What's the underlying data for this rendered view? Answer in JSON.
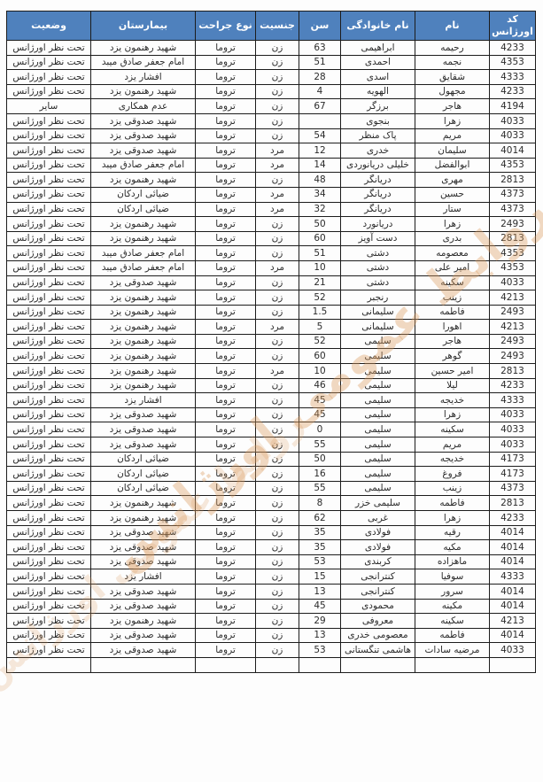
{
  "colors": {
    "header_bg": "#4f81bd",
    "header_text": "#ffffff",
    "grid_border": "#1c1c1c",
    "watermark": "#db9a5e"
  },
  "watermark": {
    "text": "روابط عمومی اورژانس"
  },
  "table": {
    "headers": [
      "کد اورژانس",
      "نام",
      "نام خانوادگی",
      "سن",
      "جنسیت",
      "نوع جراحت",
      "بیمارستان",
      "وضعیت"
    ],
    "rows": [
      [
        "4233",
        "رحیمه",
        "ابراهیمی",
        "63",
        "زن",
        "تروما",
        "شهید رهنمون یزد",
        "تحت نظر اورژانس"
      ],
      [
        "4353",
        "نجمه",
        "احمدی",
        "51",
        "زن",
        "تروما",
        "امام جعفر صادق میبد",
        "تحت نظر اورژانس"
      ],
      [
        "4333",
        "شقایق",
        "اسدی",
        "28",
        "زن",
        "تروما",
        "افشار یزد",
        "تحت نظر اورژانس"
      ],
      [
        "4233",
        "مجهول",
        "الهویه",
        "4",
        "زن",
        "تروما",
        "شهید رهنمون یزد",
        "تحت نظر اورژانس"
      ],
      [
        "4194",
        "هاجر",
        "برزگر",
        "67",
        "زن",
        "تروما",
        "عدم همکاری",
        "سایر"
      ],
      [
        "4033",
        "زهرا",
        "بنجوی",
        "",
        "زن",
        "تروما",
        "شهید صدوقی یزد",
        "تحت نظر اورژانس"
      ],
      [
        "4033",
        "مریم",
        "پاک منظر",
        "54",
        "زن",
        "تروما",
        "شهید صدوقی یزد",
        "تحت نظر اورژانس"
      ],
      [
        "4014",
        "سلیمان",
        "خدری",
        "12",
        "مرد",
        "تروما",
        "شهید صدوقی یزد",
        "تحت نظر اورژانس"
      ],
      [
        "4353",
        "ابوالفضل",
        "خلیلی دریانوردی",
        "14",
        "مرد",
        "تروما",
        "امام جعفر صادق میبد",
        "تحت نظر اورژانس"
      ],
      [
        "2813",
        "مهری",
        "دریانگر",
        "48",
        "زن",
        "تروما",
        "شهید رهنمون یزد",
        "تحت نظر اورژانس"
      ],
      [
        "4373",
        "حسین",
        "دریانگر",
        "34",
        "مرد",
        "تروما",
        "ضیائی اردکان",
        "تحت نظر اورژانس"
      ],
      [
        "4373",
        "ستار",
        "دریانگر",
        "32",
        "مرد",
        "تروما",
        "ضیائی اردکان",
        "تحت نظر اورژانس"
      ],
      [
        "2493",
        "زهرا",
        "دریانورد",
        "50",
        "زن",
        "تروما",
        "شهید رهنمون یزد",
        "تحت نظر اورژانس"
      ],
      [
        "2813",
        "بدری",
        "دست آویز",
        "60",
        "زن",
        "تروما",
        "شهید رهنمون یزد",
        "تحت نظر اورژانس"
      ],
      [
        "4353",
        "معصومه",
        "دشتی",
        "51",
        "زن",
        "تروما",
        "امام جعفر صادق میبد",
        "تحت نظر اورژانس"
      ],
      [
        "4353",
        "امیر علی",
        "دشتی",
        "10",
        "مرد",
        "تروما",
        "امام جعفر صادق میبد",
        "تحت نظر اورژانس"
      ],
      [
        "4033",
        "سکینه",
        "دشتی",
        "21",
        "زن",
        "تروما",
        "شهید صدوقی یزد",
        "تحت نظر اورژانس"
      ],
      [
        "4213",
        "زینب",
        "رنجبر",
        "52",
        "زن",
        "تروما",
        "شهید رهنمون یزد",
        "تحت نظر اورژانس"
      ],
      [
        "2493",
        "فاطمه",
        "سلیمانی",
        "1.5",
        "زن",
        "تروما",
        "شهید رهنمون یزد",
        "تحت نظر اورژانس"
      ],
      [
        "4213",
        "اهورا",
        "سلیمانی",
        "5",
        "مرد",
        "تروما",
        "شهید رهنمون یزد",
        "تحت نظر اورژانس"
      ],
      [
        "2493",
        "هاجر",
        "سلیمی",
        "52",
        "زن",
        "تروما",
        "شهید رهنمون یزد",
        "تحت نظر اورژانس"
      ],
      [
        "2493",
        "گوهر",
        "سلیمی",
        "60",
        "زن",
        "تروما",
        "شهید رهنمون یزد",
        "تحت نظر اورژانس"
      ],
      [
        "2813",
        "امیر حسین",
        "سلیمی",
        "10",
        "مرد",
        "تروما",
        "شهید رهنمون یزد",
        "تحت نظر اورژانس"
      ],
      [
        "4233",
        "لیلا",
        "سلیمی",
        "46",
        "زن",
        "تروما",
        "شهید رهنمون یزد",
        "تحت نظر اورژانس"
      ],
      [
        "4333",
        "خدیجه",
        "سلیمی",
        "45",
        "زن",
        "تروما",
        "افشار یزد",
        "تحت نظر اورژانس"
      ],
      [
        "4033",
        "زهرا",
        "سلیمی",
        "45",
        "زن",
        "تروما",
        "شهید صدوقی یزد",
        "تحت نظر اورژانس"
      ],
      [
        "4033",
        "سکینه",
        "سلیمی",
        "0",
        "زن",
        "تروما",
        "شهید صدوقی یزد",
        "تحت نظر اورژانس"
      ],
      [
        "4033",
        "مریم",
        "سلیمی",
        "55",
        "زن",
        "تروما",
        "شهید صدوقی یزد",
        "تحت نظر اورژانس"
      ],
      [
        "4173",
        "خدیجه",
        "سلیمی",
        "50",
        "زن",
        "تروما",
        "ضیائی اردکان",
        "تحت نظر اورژانس"
      ],
      [
        "4173",
        "فروغ",
        "سلیمی",
        "16",
        "زن",
        "تروما",
        "ضیائی اردکان",
        "تحت نظر اورژانس"
      ],
      [
        "4373",
        "زینب",
        "سلیمی",
        "55",
        "زن",
        "تروما",
        "ضیائی اردکان",
        "تحت نظر اورژانس"
      ],
      [
        "2813",
        "فاطمه",
        "سلیمی خزر",
        "8",
        "زن",
        "تروما",
        "شهید رهنمون یزد",
        "تحت نظر اورژانس"
      ],
      [
        "4233",
        "زهرا",
        "غربی",
        "62",
        "زن",
        "تروما",
        "شهید رهنمون یزد",
        "تحت نظر اورژانس"
      ],
      [
        "4014",
        "رقیه",
        "فولادی",
        "35",
        "زن",
        "تروما",
        "شهید صدوقی یزد",
        "تحت نظر اورژانس"
      ],
      [
        "4014",
        "مکیه",
        "فولادی",
        "35",
        "زن",
        "تروما",
        "شهید صدوقی یزد",
        "تحت نظر اورژانس"
      ],
      [
        "4014",
        "ماهزاده",
        "کربندی",
        "53",
        "زن",
        "تروما",
        "شهید صدوقی یزد",
        "تحت نظر اورژانس"
      ],
      [
        "4333",
        "سوفیا",
        "کنترانجی",
        "15",
        "زن",
        "تروما",
        "افشار یزد",
        "تحت نظر اورژانس"
      ],
      [
        "4014",
        "سرور",
        "کنترانجی",
        "13",
        "زن",
        "تروما",
        "شهید صدوقی یزد",
        "تحت نظر اورژانس"
      ],
      [
        "4014",
        "مکینه",
        "محمودی",
        "45",
        "زن",
        "تروما",
        "شهید صدوقی یزد",
        "تحت نظر اورژانس"
      ],
      [
        "4213",
        "سکینه",
        "معروفی",
        "29",
        "زن",
        "تروما",
        "شهید رهنمون یزد",
        "تحت نظر اورژانس"
      ],
      [
        "4014",
        "فاطمه",
        "معصومی خدری",
        "13",
        "زن",
        "تروما",
        "شهید صدوقی یزد",
        "تحت نظر اورژانس"
      ],
      [
        "4033",
        "مرضیه سادات",
        "هاشمی تنگستانی",
        "53",
        "زن",
        "تروما",
        "شهید صدوقی یزد",
        "تحت نظر اورژانس"
      ],
      [
        "",
        "",
        "",
        "",
        "",
        "",
        "",
        ""
      ]
    ]
  }
}
